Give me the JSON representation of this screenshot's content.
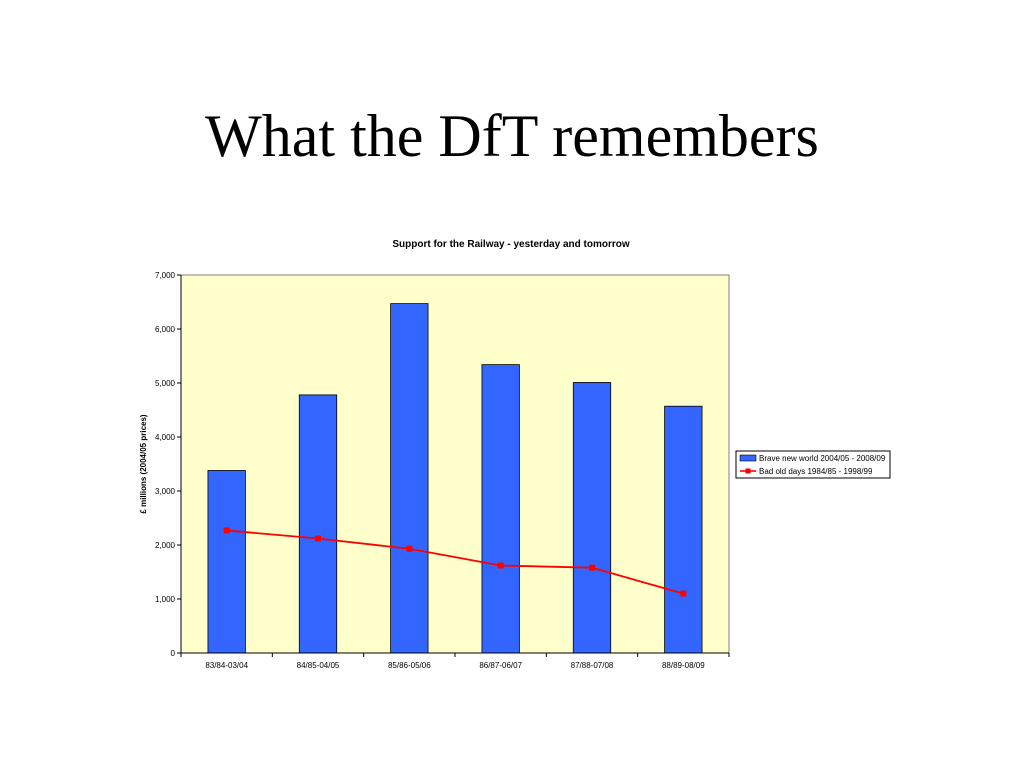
{
  "slide": {
    "title": "What the DfT remembers"
  },
  "chart_data": {
    "type": "bar",
    "title": "Support for the Railway - yesterday and tomorrow",
    "xlabel": "",
    "ylabel": "£ millions (2004/05 prices)",
    "categories": [
      "83/84-03/04",
      "84/85-04/05",
      "85/86-05/06",
      "86/87-06/07",
      "87/88-07/08",
      "88/89-08/09"
    ],
    "ylim": [
      0,
      7000
    ],
    "yticks": [
      0,
      1000,
      2000,
      3000,
      4000,
      5000,
      6000,
      7000
    ],
    "ytick_labels": [
      "0",
      "1,000",
      "2,000",
      "3,000",
      "4,000",
      "5,000",
      "6,000",
      "7,000"
    ],
    "grid": false,
    "legend_position": "right",
    "plot_background": "#FFFFCC",
    "series": [
      {
        "name": "Brave new world 2004/05 - 2008/09",
        "kind": "bar",
        "color": "#3366FF",
        "values": [
          3380,
          4780,
          6470,
          5340,
          5010,
          4570
        ]
      },
      {
        "name": "Bad old days 1984/85 - 1998/99",
        "kind": "line",
        "color": "#FF0000",
        "marker": "square",
        "values": [
          2270,
          2120,
          1930,
          1620,
          1580,
          1100
        ]
      }
    ]
  }
}
